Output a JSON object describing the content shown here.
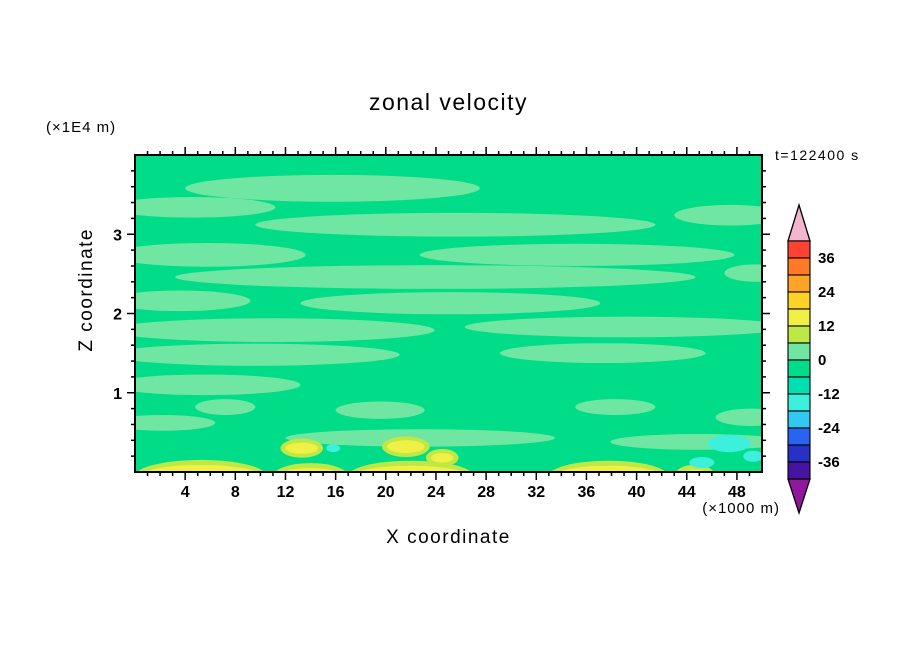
{
  "chart_data": {
    "type": "contour",
    "title": "zonal velocity",
    "time_label": "t=122400 s",
    "xlabel": "X coordinate",
    "ylabel": "Z coordinate",
    "x_unit_label": "(×1000 m)",
    "y_unit_label": "(×1E4 m)",
    "xlim": [
      0,
      50
    ],
    "ylim": [
      0,
      4
    ],
    "xticks": [
      4,
      8,
      12,
      16,
      20,
      24,
      28,
      32,
      36,
      40,
      44,
      48
    ],
    "xtick_minor_step": 1,
    "yticks": [
      1,
      2,
      3
    ],
    "ytick_minor_step": 0.2,
    "contour_interval": 6,
    "colorbar": {
      "tick_labels": [
        "36",
        "24",
        "12",
        "0",
        "-12",
        "-24",
        "-36"
      ],
      "segment_colors_top_to_bottom": [
        "#FF4232",
        "#FF7A28",
        "#FFA428",
        "#FFD228",
        "#F0F046",
        "#BEE846",
        "#6FE6A1",
        "#00DC87",
        "#00DFB4",
        "#3CF0DC",
        "#32C8F0",
        "#2864F0",
        "#2830C8",
        "#4614A0"
      ],
      "over_arrow_color": "#F4B6CE",
      "under_arrow_color": "#90189C"
    },
    "field": {
      "background_color": "#00DC87",
      "streak_color": "#6FE6A1",
      "yellow_color": "#F0F046",
      "ring_color": "#BEE846",
      "cyan_color": "#3CF0DC",
      "streaks": [
        {
          "x": [
            4.0,
            27.5
          ],
          "z": 3.58,
          "h": 0.34
        },
        {
          "x": [
            0,
            11.2
          ],
          "z": 3.34,
          "h": 0.26
        },
        {
          "x": [
            9.6,
            41.5
          ],
          "z": 3.12,
          "h": 0.3
        },
        {
          "x": [
            43.0,
            50
          ],
          "z": 3.24,
          "h": 0.26
        },
        {
          "x": [
            0,
            13.6
          ],
          "z": 2.74,
          "h": 0.3
        },
        {
          "x": [
            22.7,
            47.8
          ],
          "z": 2.74,
          "h": 0.28
        },
        {
          "x": [
            3.2,
            44.7
          ],
          "z": 2.46,
          "h": 0.3
        },
        {
          "x": [
            47.0,
            50
          ],
          "z": 2.51,
          "h": 0.22
        },
        {
          "x": [
            0,
            9.2
          ],
          "z": 2.16,
          "h": 0.26
        },
        {
          "x": [
            13.2,
            37.1
          ],
          "z": 2.13,
          "h": 0.28
        },
        {
          "x": [
            0,
            23.9
          ],
          "z": 1.79,
          "h": 0.3
        },
        {
          "x": [
            26.3,
            50
          ],
          "z": 1.83,
          "h": 0.26
        },
        {
          "x": [
            0,
            21.1
          ],
          "z": 1.48,
          "h": 0.28
        },
        {
          "x": [
            29.1,
            45.5
          ],
          "z": 1.5,
          "h": 0.25
        },
        {
          "x": [
            0,
            13.2
          ],
          "z": 1.1,
          "h": 0.26
        },
        {
          "x": [
            4.8,
            9.6
          ],
          "z": 0.82,
          "h": 0.2
        },
        {
          "x": [
            16.0,
            23.1
          ],
          "z": 0.78,
          "h": 0.22
        },
        {
          "x": [
            0,
            6.4
          ],
          "z": 0.62,
          "h": 0.2
        },
        {
          "x": [
            35.1,
            41.5
          ],
          "z": 0.82,
          "h": 0.2
        },
        {
          "x": [
            46.3,
            50
          ],
          "z": 0.69,
          "h": 0.22
        },
        {
          "x": [
            12.0,
            33.5
          ],
          "z": 0.43,
          "h": 0.22
        },
        {
          "x": [
            37.9,
            50
          ],
          "z": 0.38,
          "h": 0.2
        }
      ],
      "bottom_blobs": [
        {
          "x": [
            0.5,
            10.0
          ],
          "h": 0.14
        },
        {
          "x": [
            11.5,
            16.5
          ],
          "h": 0.1
        },
        {
          "x": [
            17.5,
            26.5
          ],
          "h": 0.13
        },
        {
          "x": [
            33.5,
            42.0
          ],
          "h": 0.13
        },
        {
          "x": [
            43.5,
            45.8
          ],
          "h": 0.08
        }
      ],
      "ovals": [
        {
          "cx": 13.3,
          "cz": 0.3,
          "rx": 1.3,
          "rz": 0.07
        },
        {
          "cx": 21.6,
          "cz": 0.32,
          "rx": 1.5,
          "rz": 0.08
        },
        {
          "cx": 24.5,
          "cz": 0.18,
          "rx": 0.9,
          "rz": 0.06
        }
      ],
      "cyan_blobs": [
        {
          "cx": 47.4,
          "cz": 0.36,
          "rx": 1.7,
          "rz": 0.11
        },
        {
          "cx": 45.2,
          "cz": 0.12,
          "rx": 1.0,
          "rz": 0.07
        },
        {
          "cx": 15.8,
          "cz": 0.3,
          "rx": 0.55,
          "rz": 0.05
        },
        {
          "cx": 49.3,
          "cz": 0.2,
          "rx": 0.8,
          "rz": 0.07
        }
      ]
    }
  }
}
